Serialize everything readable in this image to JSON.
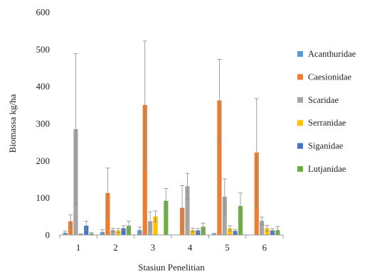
{
  "chart_data": {
    "type": "bar",
    "xlabel": "Stasiun Penelitian",
    "ylabel": "Biomassa kg/ha",
    "ylim": [
      0,
      600
    ],
    "yticks": [
      0,
      100,
      200,
      300,
      400,
      500,
      600
    ],
    "categories": [
      "1",
      "2",
      "3",
      "4",
      "5",
      "6"
    ],
    "grid": false,
    "legend_position": "right",
    "series": [
      {
        "name": "Acanthuridae",
        "color": "#5b9bd5",
        "values": [
          6,
          8,
          13,
          0,
          3,
          0
        ],
        "errors": [
          4,
          6,
          8,
          0,
          2,
          0
        ]
      },
      {
        "name": "Caesionidae",
        "color": "#ed7d31",
        "values": [
          37,
          113,
          350,
          73,
          362,
          222
        ],
        "errors": [
          17,
          67,
          172,
          60,
          111,
          145
        ]
      },
      {
        "name": "Scaridae",
        "color": "#a5a5a5",
        "values": [
          285,
          13,
          37,
          131,
          103,
          38
        ],
        "errors": [
          203,
          5,
          25,
          35,
          48,
          10
        ]
      },
      {
        "name": "Serranidae",
        "color": "#ffc000",
        "values": [
          2,
          12,
          50,
          13,
          18,
          18
        ],
        "errors": [
          1,
          5,
          15,
          5,
          7,
          8
        ]
      },
      {
        "name": "Siganidae",
        "color": "#4472c4",
        "values": [
          25,
          18,
          0,
          12,
          11,
          12
        ],
        "errors": [
          12,
          7,
          0,
          5,
          4,
          5
        ]
      },
      {
        "name": "Lutjanidae",
        "color": "#70ad47",
        "values": [
          4,
          25,
          92,
          22,
          78,
          13
        ],
        "errors": [
          3,
          12,
          33,
          10,
          35,
          10
        ]
      }
    ]
  }
}
